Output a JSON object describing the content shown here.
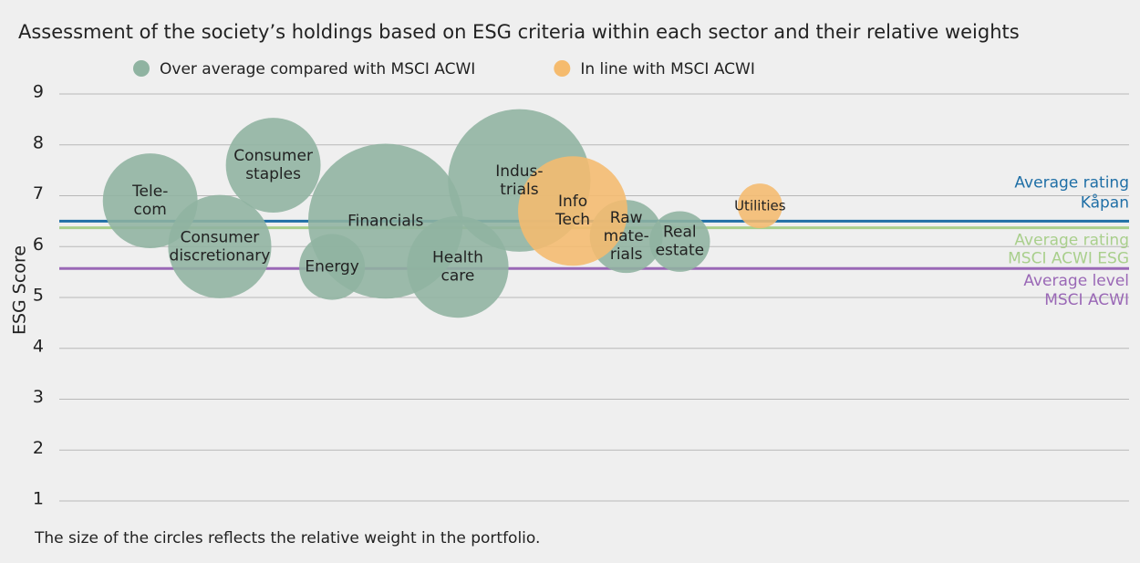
{
  "chart_data": {
    "type": "bubble",
    "title": "Assessment of the society’s holdings based on ESG criteria within each sector and their relative weights",
    "ylabel": "ESG Score",
    "footnote": "The size of the circles reflects the relative weight in the portfolio.",
    "ylim": [
      1,
      9
    ],
    "yticks": [
      1,
      2,
      3,
      4,
      5,
      6,
      7,
      8,
      9
    ],
    "xlim": [
      0,
      20
    ],
    "grid": true,
    "series": [
      {
        "name": "Over average compared with MSCI ACWI",
        "color": "#8fb3a1",
        "x": [
          1.7,
          3.0,
          4.0,
          5.1,
          6.1,
          7.45,
          8.6,
          10.6,
          11.6
        ],
        "values": [
          6.9,
          6.0,
          7.6,
          5.6,
          6.5,
          5.6,
          7.3,
          6.2,
          6.1
        ],
        "sizes": [
          27,
          32,
          27,
          13,
          72,
          31,
          61,
          16,
          11
        ],
        "labels": [
          [
            "Tele-",
            "com"
          ],
          [
            "Consumer",
            "discretionary"
          ],
          [
            "Consumer",
            "staples"
          ],
          [
            "Energy"
          ],
          [
            "Financials"
          ],
          [
            "Health",
            "care"
          ],
          [
            "Indus-",
            "trials"
          ],
          [
            "Raw",
            "mate-",
            "rials"
          ],
          [
            "Real",
            "estate"
          ]
        ]
      },
      {
        "name": "In line with MSCI ACWI",
        "color": "#f5bb6e",
        "x": [
          9.6,
          13.1
        ],
        "values": [
          6.7,
          6.8
        ],
        "sizes": [
          36,
          6
        ],
        "labels": [
          [
            "Info",
            "Tech"
          ],
          [
            "Utilities"
          ]
        ]
      }
    ],
    "reference_lines": [
      {
        "value": 6.5,
        "color": "#1f6fa6",
        "label": [
          "Average rating",
          "Kåpan"
        ]
      },
      {
        "value": 6.37,
        "color": "#a9cf8c",
        "label": [
          "Average rating",
          "MSCI ACWI ESG"
        ]
      },
      {
        "value": 5.57,
        "color": "#9a68b6",
        "label": [
          "Average level",
          "MSCI ACWI"
        ]
      }
    ]
  }
}
